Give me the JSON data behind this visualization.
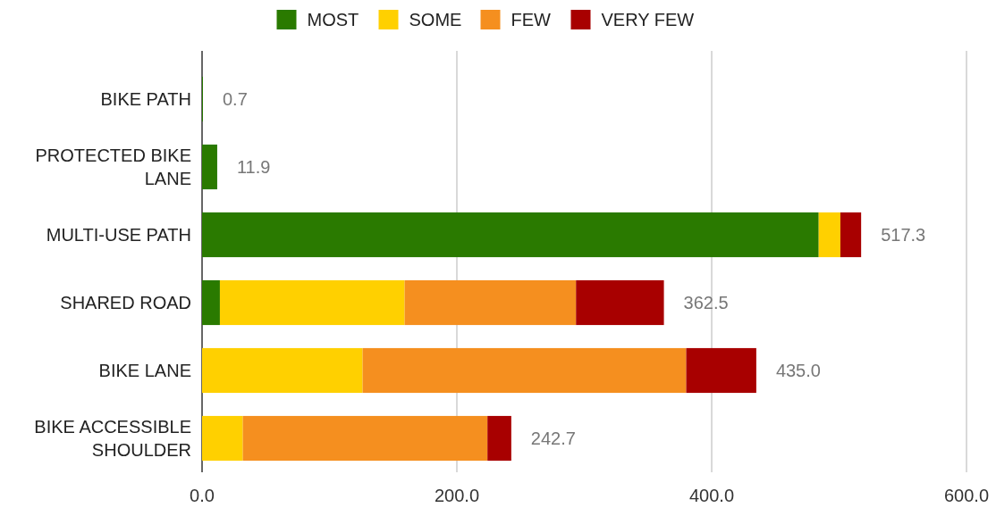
{
  "chart_data": {
    "type": "bar",
    "orientation": "horizontal",
    "stacked": true,
    "categories": [
      "BIKE PATH",
      "PROTECTED BIKE LANE",
      "MULTI-USE PATH",
      "SHARED ROAD",
      "BIKE LANE",
      "BIKE ACCESSIBLE SHOULDER"
    ],
    "series": [
      {
        "name": "MOST",
        "color": "#2a7a00",
        "values": [
          0.7,
          11.9,
          484,
          14,
          null,
          null
        ]
      },
      {
        "name": "SOME",
        "color": "#ffd000",
        "values": [
          null,
          null,
          17,
          145,
          126,
          32
        ]
      },
      {
        "name": "FEW",
        "color": "#f58f1f",
        "values": [
          null,
          null,
          null,
          134.5,
          254,
          192
        ]
      },
      {
        "name": "VERY FEW",
        "color": "#a80000",
        "values": [
          null,
          null,
          16.3,
          69,
          55,
          18.7
        ]
      }
    ],
    "totals": [
      "0.7",
      "11.9",
      "517.3",
      "362.5",
      "435.0",
      "242.7"
    ],
    "xlim": [
      0,
      600
    ],
    "xticks": [
      {
        "value": 0,
        "label": "0.0"
      },
      {
        "value": 200,
        "label": "200.0"
      },
      {
        "value": 400,
        "label": "400.0"
      },
      {
        "value": 600,
        "label": "600.0"
      }
    ],
    "grid": "x",
    "legend": "top"
  }
}
